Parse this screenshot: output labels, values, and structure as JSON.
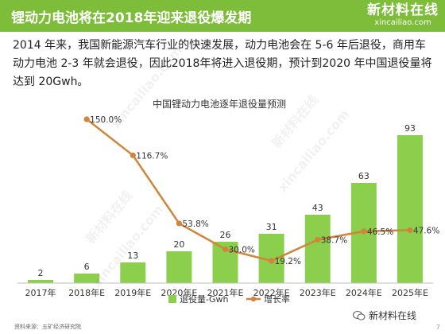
{
  "header": {
    "title": "锂动力电池将在2018年迎来退役爆发期",
    "brand_name": "新材料在线",
    "brand_url": "xincailiao.com"
  },
  "intro_text": "2014 年来，我国新能源汽车行业的快速发展，动力电池会在 5-6 年后退役，商用车动力电池 2-3 年就会退役，因此2018年将进入退役期，预计到2020 年中国退役量将达到 20Gwh。",
  "chart_data": {
    "type": "bar",
    "title": "中国锂动力电池逐年退役量预测",
    "categories": [
      "2017年",
      "2018年E",
      "2019年E",
      "2020年E",
      "2021年E",
      "2022年E",
      "2023年E",
      "2024年E",
      "2025年E"
    ],
    "series": [
      {
        "name": "退役量-Gwh",
        "type": "bar",
        "color": "#8ccf4d",
        "values": [
          2,
          6,
          13,
          20,
          26,
          31,
          43,
          63,
          93
        ]
      },
      {
        "name": "增长率",
        "type": "line",
        "color": "#d2843a",
        "values": [
          null,
          150.0,
          116.7,
          53.8,
          30.0,
          19.2,
          38.7,
          46.5,
          47.6
        ]
      }
    ],
    "bar_value_labels": [
      "2",
      "6",
      "13",
      "20",
      "26",
      "31",
      "43",
      "63",
      "93"
    ],
    "line_value_labels": [
      "",
      "150.0%",
      "116.7%",
      "53.8%",
      "30.0%",
      "19.2%",
      "38.7%",
      "46.5%",
      "47.6%"
    ],
    "legend": {
      "placement": "bottom"
    },
    "grid": false
  },
  "footer": {
    "source": "资料来源：五矿经济研究院",
    "watermark": "新材料在线",
    "page": "7"
  }
}
